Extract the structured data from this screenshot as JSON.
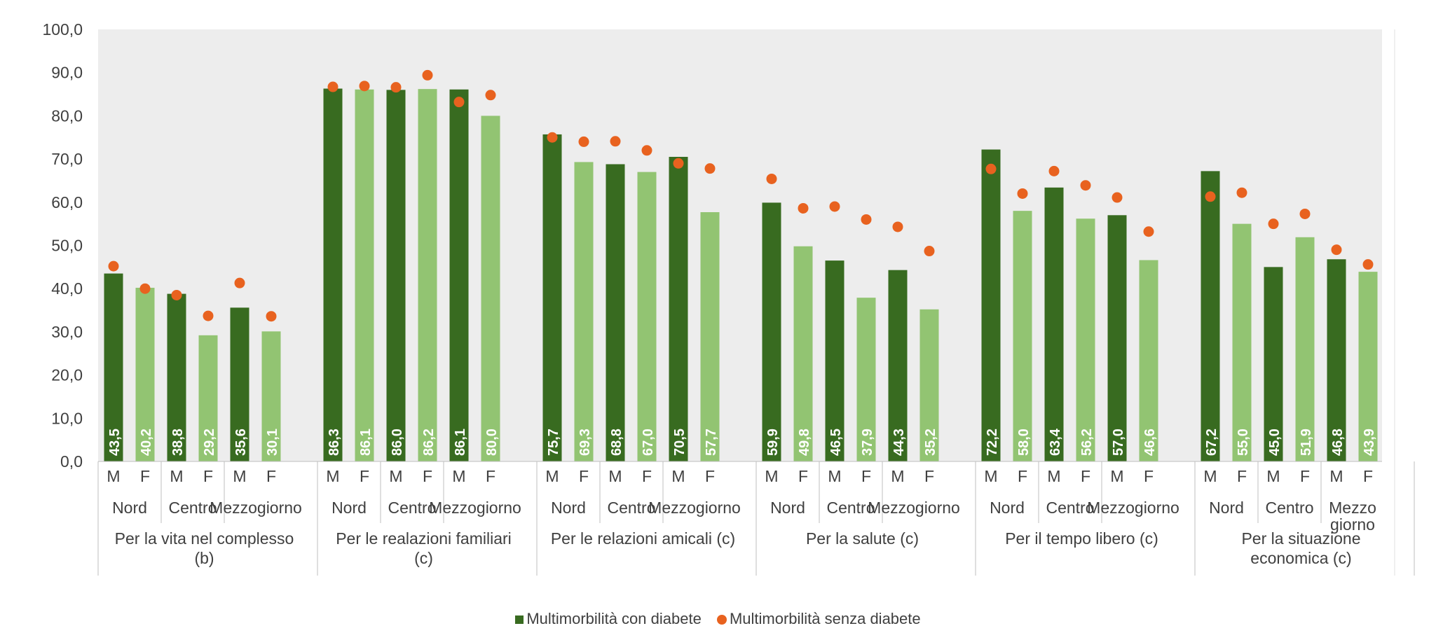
{
  "chart_data": {
    "type": "bar",
    "ylim": [
      0,
      100
    ],
    "y_ticks": [
      "0,0",
      "10,0",
      "20,0",
      "30,0",
      "40,0",
      "50,0",
      "60,0",
      "70,0",
      "80,0",
      "90,0",
      "100,0"
    ],
    "colors": {
      "male_bar": "#386b20",
      "female_bar": "#92c472",
      "dot": "#e8621f",
      "plot_bg": "#ededed"
    },
    "series": [
      {
        "name": "Multimorbilità con diabete",
        "kind": "bar"
      },
      {
        "name": "Multimorbilità senza diabete",
        "kind": "dot"
      }
    ],
    "groups": [
      {
        "label": [
          "Per la vita nel complesso",
          "(b)"
        ],
        "subgroups": [
          {
            "label": [
              "Nord"
            ],
            "bars": [
              {
                "sex": "M",
                "value": 43.5,
                "label": "43,5",
                "dot": 45.2
              },
              {
                "sex": "F",
                "value": 40.2,
                "label": "40,2",
                "dot": 40.0
              }
            ]
          },
          {
            "label": [
              "Centro"
            ],
            "bars": [
              {
                "sex": "M",
                "value": 38.8,
                "label": "38,8",
                "dot": 38.5
              },
              {
                "sex": "F",
                "value": 29.2,
                "label": "29,2",
                "dot": 33.7
              }
            ]
          },
          {
            "label": [
              "Mezzogiorno"
            ],
            "bars": [
              {
                "sex": "M",
                "value": 35.6,
                "label": "35,6",
                "dot": 41.3
              },
              {
                "sex": "F",
                "value": 30.1,
                "label": "30,1",
                "dot": 33.6
              }
            ]
          }
        ]
      },
      {
        "label": [
          "Per le realazioni familiari",
          "(c)"
        ],
        "subgroups": [
          {
            "label": [
              "Nord"
            ],
            "bars": [
              {
                "sex": "M",
                "value": 86.3,
                "label": "86,3",
                "dot": 86.7
              },
              {
                "sex": "F",
                "value": 86.1,
                "label": "86,1",
                "dot": 86.9
              }
            ]
          },
          {
            "label": [
              "Centro"
            ],
            "bars": [
              {
                "sex": "M",
                "value": 86.0,
                "label": "86,0",
                "dot": 86.6
              },
              {
                "sex": "F",
                "value": 86.2,
                "label": "86,2",
                "dot": 89.4
              }
            ]
          },
          {
            "label": [
              "Mezzogiorno"
            ],
            "bars": [
              {
                "sex": "M",
                "value": 86.1,
                "label": "86,1",
                "dot": 83.2
              },
              {
                "sex": "F",
                "value": 80.0,
                "label": "80,0",
                "dot": 84.8
              }
            ]
          }
        ]
      },
      {
        "label": [
          "Per le relazioni amicali (c)"
        ],
        "subgroups": [
          {
            "label": [
              "Nord"
            ],
            "bars": [
              {
                "sex": "M",
                "value": 75.7,
                "label": "75,7",
                "dot": 75.0
              },
              {
                "sex": "F",
                "value": 69.3,
                "label": "69,3",
                "dot": 74.0
              }
            ]
          },
          {
            "label": [
              "Centro"
            ],
            "bars": [
              {
                "sex": "M",
                "value": 68.8,
                "label": "68,8",
                "dot": 74.1
              },
              {
                "sex": "F",
                "value": 67.0,
                "label": "67,0",
                "dot": 72.0
              }
            ]
          },
          {
            "label": [
              "Mezzogiorno"
            ],
            "bars": [
              {
                "sex": "M",
                "value": 70.5,
                "label": "70,5",
                "dot": 69.0
              },
              {
                "sex": "F",
                "value": 57.7,
                "label": "57,7",
                "dot": 67.8
              }
            ]
          }
        ]
      },
      {
        "label": [
          "Per la salute (c)"
        ],
        "subgroups": [
          {
            "label": [
              "Nord"
            ],
            "bars": [
              {
                "sex": "M",
                "value": 59.9,
                "label": "59,9",
                "dot": 65.4
              },
              {
                "sex": "F",
                "value": 49.8,
                "label": "49,8",
                "dot": 58.6
              }
            ]
          },
          {
            "label": [
              "Centro"
            ],
            "bars": [
              {
                "sex": "M",
                "value": 46.5,
                "label": "46,5",
                "dot": 59.0
              },
              {
                "sex": "F",
                "value": 37.9,
                "label": "37,9",
                "dot": 56.0
              }
            ]
          },
          {
            "label": [
              "Mezzogiorno"
            ],
            "bars": [
              {
                "sex": "M",
                "value": 44.3,
                "label": "44,3",
                "dot": 54.3
              },
              {
                "sex": "F",
                "value": 35.2,
                "label": "35,2",
                "dot": 48.7
              }
            ]
          }
        ]
      },
      {
        "label": [
          "Per il tempo libero (c)"
        ],
        "subgroups": [
          {
            "label": [
              "Nord"
            ],
            "bars": [
              {
                "sex": "M",
                "value": 72.2,
                "label": "72,2",
                "dot": 67.7
              },
              {
                "sex": "F",
                "value": 58.0,
                "label": "58,0",
                "dot": 62.0
              }
            ]
          },
          {
            "label": [
              "Centro"
            ],
            "bars": [
              {
                "sex": "M",
                "value": 63.4,
                "label": "63,4",
                "dot": 67.2
              },
              {
                "sex": "F",
                "value": 56.2,
                "label": "56,2",
                "dot": 63.9
              }
            ]
          },
          {
            "label": [
              "Mezzogiorno"
            ],
            "bars": [
              {
                "sex": "M",
                "value": 57.0,
                "label": "57,0",
                "dot": 61.1
              },
              {
                "sex": "F",
                "value": 46.6,
                "label": "46,6",
                "dot": 53.2
              }
            ]
          }
        ]
      },
      {
        "label": [
          "Per la situazione",
          "economica (c)"
        ],
        "subgroups": [
          {
            "label": [
              "Nord"
            ],
            "bars": [
              {
                "sex": "M",
                "value": 67.2,
                "label": "67,2",
                "dot": 61.3
              },
              {
                "sex": "F",
                "value": 55.0,
                "label": "55,0",
                "dot": 62.2
              }
            ]
          },
          {
            "label": [
              "Centro"
            ],
            "bars": [
              {
                "sex": "M",
                "value": 45.0,
                "label": "45,0",
                "dot": 55.0
              },
              {
                "sex": "F",
                "value": 51.9,
                "label": "51,9",
                "dot": 57.3
              }
            ]
          },
          {
            "label": [
              "Mezzo",
              "giorno"
            ],
            "bars": [
              {
                "sex": "M",
                "value": 46.8,
                "label": "46,8",
                "dot": 49.0
              },
              {
                "sex": "F",
                "value": 43.9,
                "label": "43,9",
                "dot": 45.6
              }
            ]
          }
        ]
      }
    ]
  },
  "legend": {
    "bar_label": "Multimorbilità con diabete",
    "dot_label": "Multimorbilità senza diabete"
  }
}
